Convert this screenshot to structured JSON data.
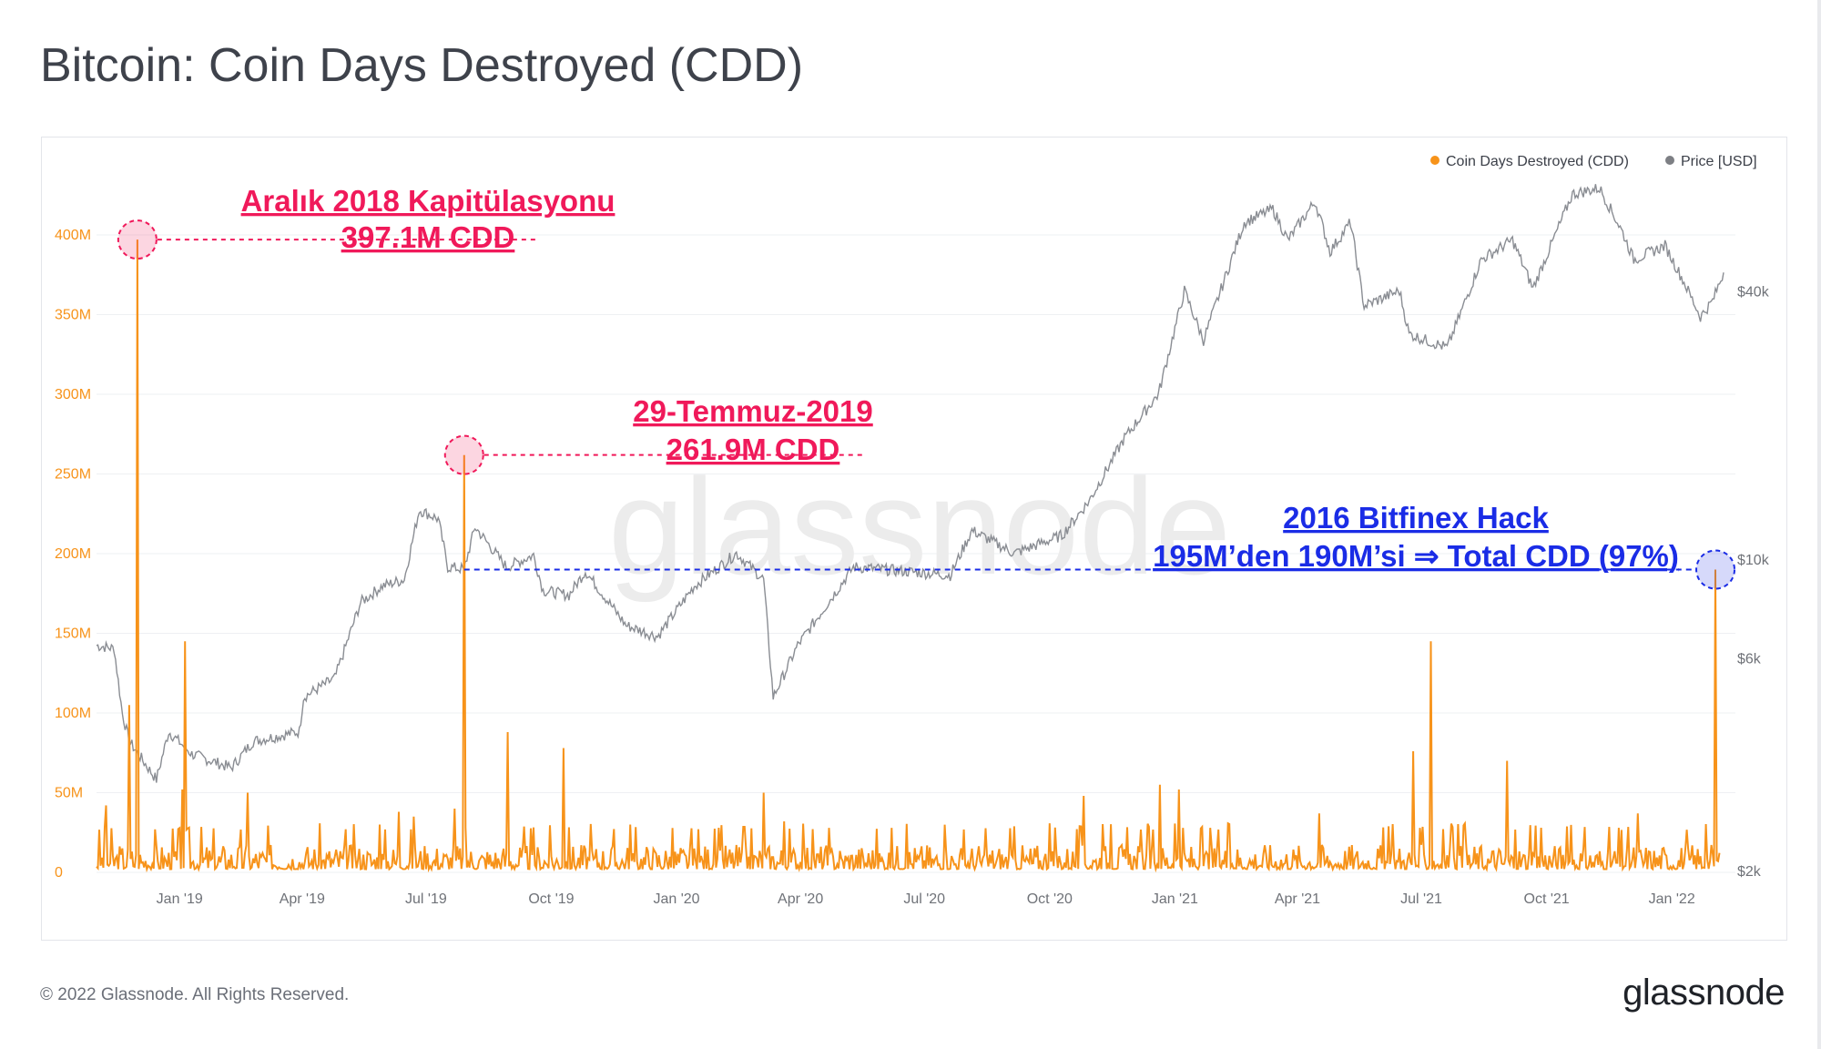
{
  "title": "Bitcoin: Coin Days Destroyed (CDD)",
  "footer": "© 2022 Glassnode. All Rights Reserved.",
  "logo": "glassnode",
  "watermark": "glassnode",
  "colors": {
    "cdd": "#f7931a",
    "price": "#8a8d93",
    "annotation_red": "#f0195a",
    "annotation_blue": "#1a2ce6",
    "grid": "#eef0f3"
  },
  "chart_data": {
    "type": "line",
    "legend": [
      {
        "label": "Coin Days Destroyed (CDD)",
        "color": "#f7931a"
      },
      {
        "label": "Price [USD]",
        "color": "#7d7f84"
      }
    ],
    "legend_position": "top-right",
    "grid": true,
    "x_ticks": [
      "Jan '19",
      "Apr '19",
      "Jul '19",
      "Oct '19",
      "Jan '20",
      "Apr '20",
      "Jul '20",
      "Oct '20",
      "Jan '21",
      "Apr '21",
      "Jul '21",
      "Oct '21",
      "Jan '22"
    ],
    "x_range": [
      "2018-11-01",
      "2022-02-10"
    ],
    "y_left": {
      "ticks": [
        "0",
        "50M",
        "100M",
        "150M",
        "200M",
        "250M",
        "300M",
        "350M",
        "400M"
      ],
      "range": [
        0,
        400000000
      ]
    },
    "y_right": {
      "scale": "log",
      "ticks": [
        "$2k",
        "$6k",
        "$10k",
        "$40k"
      ],
      "tick_values": [
        2000,
        6000,
        10000,
        40000
      ]
    },
    "series": [
      {
        "name": "Coin Days Destroyed (CDD)",
        "axis": "left",
        "spikes": [
          {
            "date": "2018-11-08",
            "value": 42000000
          },
          {
            "date": "2018-11-25",
            "value": 105000000
          },
          {
            "date": "2018-12-01",
            "value": 397100000
          },
          {
            "date": "2019-01-03",
            "value": 52000000
          },
          {
            "date": "2019-01-05",
            "value": 145000000
          },
          {
            "date": "2019-02-20",
            "value": 50000000
          },
          {
            "date": "2019-05-28",
            "value": 30000000
          },
          {
            "date": "2019-06-11",
            "value": 38000000
          },
          {
            "date": "2019-06-22",
            "value": 35000000
          },
          {
            "date": "2019-07-22",
            "value": 40000000
          },
          {
            "date": "2019-07-29",
            "value": 261900000
          },
          {
            "date": "2019-08-30",
            "value": 88000000
          },
          {
            "date": "2019-10-10",
            "value": 78000000
          },
          {
            "date": "2019-11-28",
            "value": 30000000
          },
          {
            "date": "2020-03-05",
            "value": 50000000
          },
          {
            "date": "2020-03-20",
            "value": 32000000
          },
          {
            "date": "2020-10-26",
            "value": 48000000
          },
          {
            "date": "2020-12-21",
            "value": 55000000
          },
          {
            "date": "2021-01-04",
            "value": 52000000
          },
          {
            "date": "2021-04-17",
            "value": 37000000
          },
          {
            "date": "2021-06-25",
            "value": 76000000
          },
          {
            "date": "2021-07-08",
            "value": 145000000
          },
          {
            "date": "2021-09-02",
            "value": 70000000
          },
          {
            "date": "2021-09-27",
            "value": 28000000
          },
          {
            "date": "2021-12-07",
            "value": 37000000
          },
          {
            "date": "2022-02-02",
            "value": 190000000
          }
        ],
        "baseline_range": [
          2000000,
          20000000
        ]
      },
      {
        "name": "Price [USD]",
        "axis": "right",
        "points": [
          {
            "date": "2018-11-01",
            "value": 6400
          },
          {
            "date": "2018-11-14",
            "value": 6300
          },
          {
            "date": "2018-11-20",
            "value": 4500
          },
          {
            "date": "2018-11-25",
            "value": 3900
          },
          {
            "date": "2018-12-15",
            "value": 3200
          },
          {
            "date": "2018-12-24",
            "value": 4100
          },
          {
            "date": "2019-01-10",
            "value": 3650
          },
          {
            "date": "2019-02-08",
            "value": 3400
          },
          {
            "date": "2019-02-24",
            "value": 3900
          },
          {
            "date": "2019-03-30",
            "value": 4100
          },
          {
            "date": "2019-04-02",
            "value": 4900
          },
          {
            "date": "2019-04-25",
            "value": 5400
          },
          {
            "date": "2019-05-14",
            "value": 8000
          },
          {
            "date": "2019-05-30",
            "value": 8700
          },
          {
            "date": "2019-06-15",
            "value": 9000
          },
          {
            "date": "2019-06-26",
            "value": 12900
          },
          {
            "date": "2019-07-10",
            "value": 12300
          },
          {
            "date": "2019-07-17",
            "value": 9600
          },
          {
            "date": "2019-07-29",
            "value": 9500
          },
          {
            "date": "2019-08-06",
            "value": 11800
          },
          {
            "date": "2019-08-29",
            "value": 9600
          },
          {
            "date": "2019-09-18",
            "value": 10200
          },
          {
            "date": "2019-09-25",
            "value": 8500
          },
          {
            "date": "2019-10-14",
            "value": 8300
          },
          {
            "date": "2019-10-26",
            "value": 9400
          },
          {
            "date": "2019-11-25",
            "value": 7100
          },
          {
            "date": "2019-12-18",
            "value": 6700
          },
          {
            "date": "2020-01-14",
            "value": 8700
          },
          {
            "date": "2020-02-14",
            "value": 10300
          },
          {
            "date": "2020-03-05",
            "value": 9000
          },
          {
            "date": "2020-03-12",
            "value": 4900
          },
          {
            "date": "2020-03-30",
            "value": 6400
          },
          {
            "date": "2020-04-30",
            "value": 8700
          },
          {
            "date": "2020-05-10",
            "value": 9600
          },
          {
            "date": "2020-06-15",
            "value": 9400
          },
          {
            "date": "2020-07-20",
            "value": 9200
          },
          {
            "date": "2020-08-05",
            "value": 11600
          },
          {
            "date": "2020-09-05",
            "value": 10300
          },
          {
            "date": "2020-10-10",
            "value": 11300
          },
          {
            "date": "2020-10-30",
            "value": 13500
          },
          {
            "date": "2020-11-25",
            "value": 18700
          },
          {
            "date": "2020-12-20",
            "value": 23500
          },
          {
            "date": "2021-01-08",
            "value": 40000
          },
          {
            "date": "2021-01-22",
            "value": 31000
          },
          {
            "date": "2021-02-21",
            "value": 57000
          },
          {
            "date": "2021-03-14",
            "value": 61000
          },
          {
            "date": "2021-03-25",
            "value": 52000
          },
          {
            "date": "2021-04-14",
            "value": 63500
          },
          {
            "date": "2021-04-25",
            "value": 49000
          },
          {
            "date": "2021-05-10",
            "value": 57000
          },
          {
            "date": "2021-05-20",
            "value": 37000
          },
          {
            "date": "2021-06-15",
            "value": 40000
          },
          {
            "date": "2021-06-22",
            "value": 32000
          },
          {
            "date": "2021-07-20",
            "value": 29800
          },
          {
            "date": "2021-08-14",
            "value": 47000
          },
          {
            "date": "2021-09-06",
            "value": 52000
          },
          {
            "date": "2021-09-21",
            "value": 40500
          },
          {
            "date": "2021-10-20",
            "value": 66000
          },
          {
            "date": "2021-11-09",
            "value": 68000
          },
          {
            "date": "2021-11-26",
            "value": 54000
          },
          {
            "date": "2021-12-04",
            "value": 47000
          },
          {
            "date": "2021-12-27",
            "value": 50500
          },
          {
            "date": "2022-01-10",
            "value": 41800
          },
          {
            "date": "2022-01-22",
            "value": 35000
          },
          {
            "date": "2022-01-31",
            "value": 38000
          },
          {
            "date": "2022-02-08",
            "value": 44000
          }
        ]
      }
    ],
    "annotations": [
      {
        "lines": [
          "Aralık 2018 Kapitülasyonu",
          "397.1M CDD"
        ],
        "date": "2018-12-01",
        "value": 397100000,
        "color": "#f0195a"
      },
      {
        "lines": [
          "29-Temmuz-2019",
          "261.9M CDD"
        ],
        "date": "2019-07-29",
        "value": 261900000,
        "color": "#f0195a"
      },
      {
        "lines": [
          "2016 Bitfinex Hack",
          "195M’den 190M’si ⇒ Total CDD (97%)"
        ],
        "date": "2022-02-02",
        "value": 190000000,
        "color": "#1a2ce6"
      }
    ]
  }
}
